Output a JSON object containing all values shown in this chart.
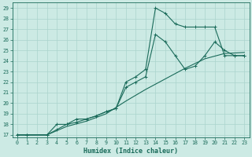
{
  "xlabel": "Humidex (Indice chaleur)",
  "bg_color": "#cceae4",
  "grid_color": "#aad4cc",
  "line_color": "#1a6b5a",
  "line1_x": [
    0,
    1,
    3,
    4,
    5,
    6,
    7,
    8,
    9,
    10,
    11,
    12,
    13,
    14,
    15,
    16,
    17,
    18,
    19,
    20,
    21,
    22,
    23
  ],
  "line1_y": [
    17,
    17,
    17,
    18,
    18,
    18.5,
    18.5,
    18.8,
    19.2,
    19.5,
    22,
    22.5,
    23.2,
    29.0,
    28.5,
    27.5,
    27.2,
    27.2,
    27.2,
    27.2,
    24.5,
    24.5,
    24.5
  ],
  "line2_x": [
    0,
    1,
    3,
    4,
    5,
    6,
    7,
    8,
    9,
    10,
    11,
    12,
    13,
    14,
    15,
    16,
    17,
    18,
    19,
    20,
    21,
    22,
    23
  ],
  "line2_y": [
    17,
    17,
    17,
    17.5,
    18,
    18.2,
    18.5,
    18.8,
    19.2,
    19.5,
    21.5,
    22.0,
    22.5,
    26.5,
    25.8,
    24.5,
    23.2,
    23.5,
    24.5,
    25.8,
    25.0,
    24.5,
    24.5
  ],
  "line3_x": [
    0,
    1,
    3,
    5,
    7,
    9,
    11,
    13,
    15,
    17,
    19,
    21,
    23
  ],
  "line3_y": [
    17,
    17,
    17,
    17.8,
    18.3,
    19.0,
    20.2,
    21.3,
    22.3,
    23.3,
    24.2,
    24.7,
    24.8
  ],
  "xlim": [
    -0.5,
    23.5
  ],
  "ylim_min": 16.8,
  "ylim_max": 29.5,
  "yticks": [
    17,
    18,
    19,
    20,
    21,
    22,
    23,
    24,
    25,
    26,
    27,
    28,
    29
  ],
  "xticks": [
    0,
    1,
    2,
    3,
    4,
    5,
    6,
    7,
    8,
    9,
    10,
    11,
    12,
    13,
    14,
    15,
    16,
    17,
    18,
    19,
    20,
    21,
    22,
    23
  ]
}
